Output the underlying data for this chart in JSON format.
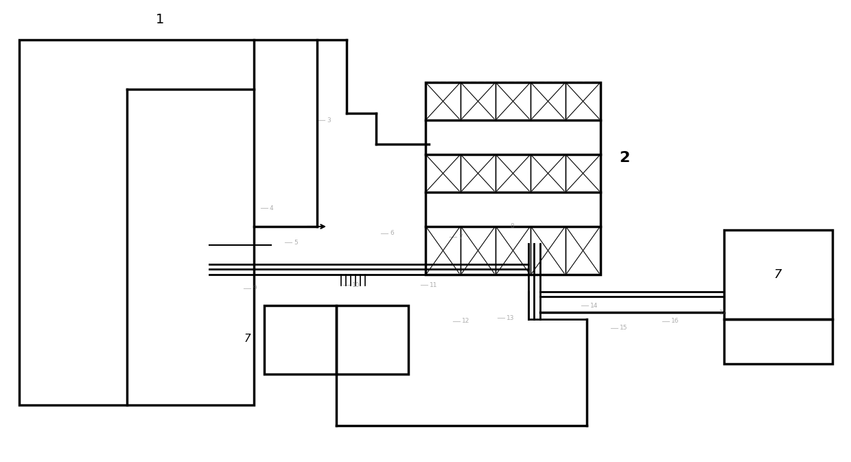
{
  "bg_color": "#ffffff",
  "lc": "#000000",
  "lw": 1.5,
  "lwt": 2.5,
  "label1": "1",
  "label2": "2",
  "label7a_text": "7",
  "label7b_text": "7"
}
